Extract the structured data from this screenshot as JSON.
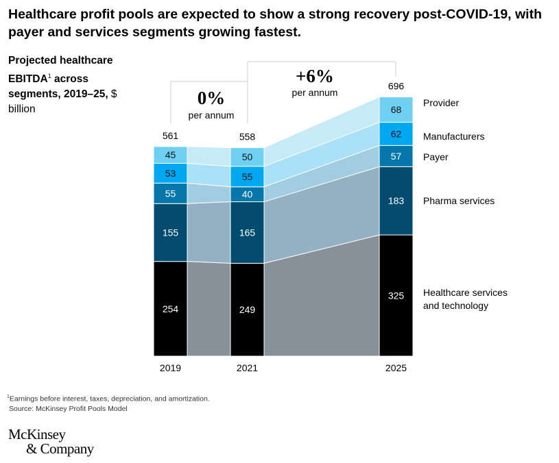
{
  "title": "Healthcare profit pools are expected to show a strong recovery post-COVID-19, with payer and services segments growing fastest.",
  "subtitle": {
    "bold": "Projected healthcare EBITDA",
    "sup": "1",
    "bold2": " across segments, 2019–25,",
    "unit": " $ billion"
  },
  "footnote": "Earnings before interest, taxes, depreciation, and amortization.",
  "footnote_mark": "1",
  "source": "Source: McKinsey Profit Pools Model",
  "logo": [
    "McKinsey",
    "& Company"
  ],
  "chart_data": {
    "type": "bar",
    "stacked": true,
    "categories": [
      "2019",
      "2021",
      "2025"
    ],
    "series": [
      {
        "name": "Provider",
        "values": [
          254,
          249,
          325
        ],
        "color": "#000000",
        "connector": "#87919a",
        "label_color": "#ffffff"
      },
      {
        "name": "Manufacturers",
        "values": [
          155,
          165,
          183
        ],
        "color": "#034b6f",
        "connector": "#94b1c3",
        "label_color": "#ffffff"
      },
      {
        "name": "Payer",
        "values": [
          55,
          40,
          57
        ],
        "color": "#0577aa",
        "connector": "#a2cde1",
        "label_color": "#ffffff"
      },
      {
        "name": "Pharma services",
        "values": [
          53,
          55,
          62
        ],
        "color": "#00a8f2",
        "connector": "#abe1f8",
        "label_color": "#111111"
      },
      {
        "name": "Healthcare services and technology",
        "values": [
          45,
          50,
          68
        ],
        "color": "#6fd0f2",
        "connector": "#c6ebf7",
        "label_color": "#111111"
      }
    ],
    "totals": [
      561,
      558,
      696
    ],
    "annotations": [
      {
        "value": "0%",
        "text": "per annum",
        "from": "2019",
        "to": "2021"
      },
      {
        "value": "+6%",
        "text": "per annum",
        "from": "2021",
        "to": "2025"
      }
    ],
    "legend_labels": [
      [
        "Healthcare services",
        "and technology"
      ],
      [
        "Pharma services"
      ],
      [
        "Payer"
      ],
      [
        "Manufacturers"
      ],
      [
        "Provider"
      ]
    ],
    "legend": "right"
  }
}
